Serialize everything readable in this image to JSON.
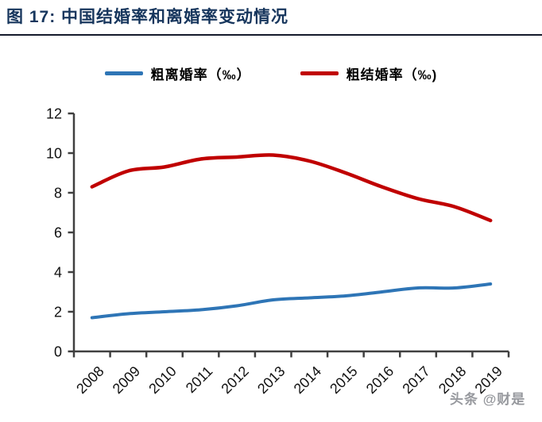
{
  "page": {
    "title": "图 17:  中国结婚率和离婚率变动情况",
    "watermark": "头条 @财是"
  },
  "legend": [
    {
      "label": "粗离婚率（‰）",
      "color": "#2E75B6"
    },
    {
      "label": "粗结婚率（‰)",
      "color": "#C00000"
    }
  ],
  "colors": {
    "title": "#17365D",
    "axis": "#404040",
    "divorce_line": "#2E75B6",
    "marriage_line": "#C00000"
  },
  "chart_data": {
    "type": "line",
    "title": "中国结婚率和离婚率变动情况",
    "categories": [
      "2008",
      "2009",
      "2010",
      "2011",
      "2012",
      "2013",
      "2014",
      "2015",
      "2016",
      "2017",
      "2018",
      "2019"
    ],
    "series": [
      {
        "name": "粗离婚率（‰）",
        "color": "#2E75B6",
        "values": [
          1.7,
          1.9,
          2.0,
          2.1,
          2.3,
          2.6,
          2.7,
          2.8,
          3.0,
          3.2,
          3.2,
          3.4
        ]
      },
      {
        "name": "粗结婚率（‰)",
        "color": "#C00000",
        "values": [
          8.3,
          9.1,
          9.3,
          9.7,
          9.8,
          9.9,
          9.6,
          9.0,
          8.3,
          7.7,
          7.3,
          6.6
        ]
      }
    ],
    "xlabel": "",
    "ylabel": "",
    "ylim": [
      0,
      12
    ],
    "yticks": [
      0,
      2,
      4,
      6,
      8,
      10,
      12
    ],
    "grid": false,
    "legend_position": "top",
    "x_tick_label_rotation": 45
  }
}
